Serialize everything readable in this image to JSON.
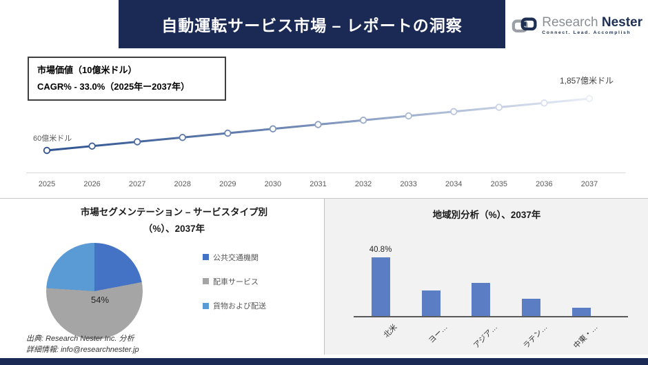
{
  "header": {
    "title": "自動運転サービス市場 – レポートの洞察",
    "logo": {
      "name": "Research Nester",
      "brand_part1": "Research",
      "brand_part2": "Nester",
      "tagline": "Connect. Lead. Accomplish"
    }
  },
  "info_box": {
    "line1": "市場価値（10億米ドル）",
    "line2": "CAGR% - 33.0%（2025年ー2037年）"
  },
  "colors": {
    "header_navy": "#1b2a55",
    "line_start": "#2e5290",
    "line_end": "#e9edf7",
    "bar_blue": "#5b7dc4",
    "pie_dark_blue": "#4472c4",
    "pie_gray": "#a5a5a5",
    "pie_light_blue": "#5b9bd5",
    "right_panel_bg": "#f2f2f2"
  },
  "chart_data": [
    {
      "type": "line",
      "title": "市場価値（10億米ドル）",
      "x": [
        "2025",
        "2026",
        "2027",
        "2028",
        "2029",
        "2030",
        "2031",
        "2032",
        "2033",
        "2034",
        "2035",
        "2036",
        "2037"
      ],
      "values_billion_usd": [
        6.0,
        8.0,
        10.6,
        14.1,
        18.8,
        25.0,
        33.2,
        44.2,
        58.7,
        78.1,
        103.9,
        138.2,
        185.7
      ],
      "start_point_label": "60億米ドル",
      "end_point_label": "1,857億米ドル",
      "cagr_pct": 33.0,
      "period": "2025年ー2037年",
      "ylabel": "10億米ドル",
      "grid": "off",
      "legend_position": "none",
      "style": "gradient line fading left-to-right with white circle markers"
    },
    {
      "type": "pie",
      "title_line1": "市場セグメンテーション – サービスタイプ別",
      "title_line2": "（%）、2037年",
      "segments": [
        {
          "label": "公共交通機関",
          "value": 22,
          "color": "#4472c4",
          "data_label": ""
        },
        {
          "label": "配車サービス",
          "value": 54,
          "color": "#a5a5a5",
          "data_label": "54%"
        },
        {
          "label": "貨物および配送",
          "value": 24,
          "color": "#5b9bd5",
          "data_label": ""
        }
      ],
      "start_angle_deg": 0,
      "legend_position": "right"
    },
    {
      "type": "bar",
      "title": "地域別分析（%）、2037年",
      "categories": [
        "北米",
        "ヨー…",
        "アジア…",
        "ラテン…",
        "中東・…"
      ],
      "values": [
        40.8,
        18,
        23,
        12,
        6
      ],
      "data_labels": [
        "40.8%",
        "",
        "",
        "",
        ""
      ],
      "ylim": [
        0,
        45
      ],
      "bar_color": "#5b7dc4",
      "xlabel_rotation_deg": 45,
      "grid": "off"
    }
  ],
  "footer": {
    "line1": "出典: Research Nester Inc. 分析",
    "line2": "詳細情報: info@researchnester.jp"
  }
}
